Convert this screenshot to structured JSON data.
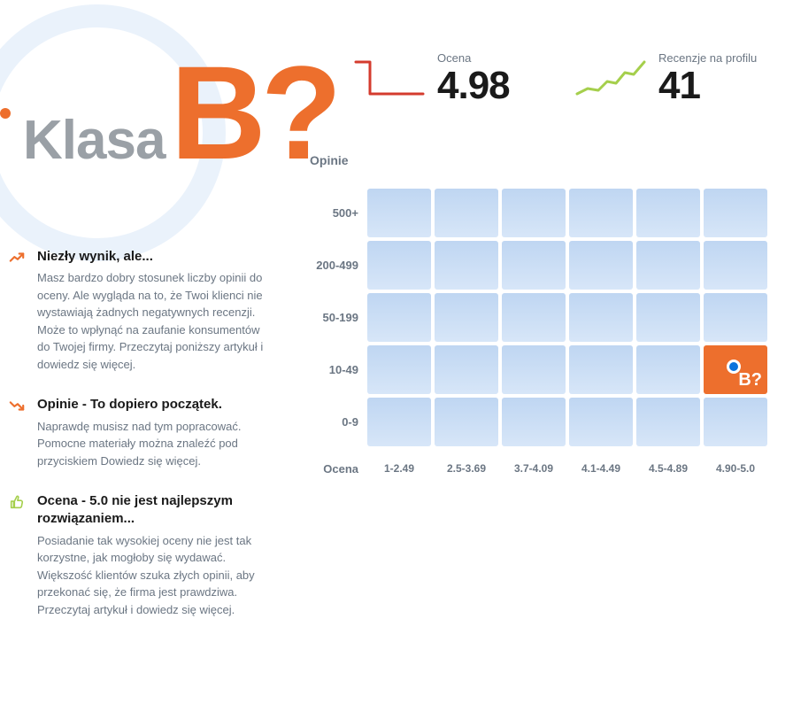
{
  "brand": {
    "klasa_label": "Klasa",
    "grade": "B?",
    "dot_color": "#ed6f2d",
    "label_color": "#9aa0a6",
    "grade_color": "#ed6f2d"
  },
  "metrics": {
    "rating": {
      "label": "Ocena",
      "value": "4.98",
      "line_color": "#d43b2e"
    },
    "reviews": {
      "label": "Recenzje na profilu",
      "value": "41",
      "line_color": "#a5cf4c"
    }
  },
  "heatmap": {
    "y_title": "Opinie",
    "x_title": "Ocena",
    "y_labels": [
      "500+",
      "200-499",
      "50-199",
      "10-49",
      "0-9"
    ],
    "x_labels": [
      "1-2.49",
      "2.5-3.69",
      "3.7-4.09",
      "4.1-4.49",
      "4.5-4.89",
      "4.90-5.0"
    ],
    "cell_color": "#c9ddf5",
    "active_color": "#ed6f2d",
    "active_row": 3,
    "active_col": 5,
    "active_badge": "B?"
  },
  "items": [
    {
      "icon": "trend-up-orange",
      "icon_color": "#ed6f2d",
      "title": "Niezły wynik, ale...",
      "desc": "Masz bardzo dobry stosunek liczby opinii do oceny. Ale wygląda na to, że Twoi klienci nie wystawiają żadnych negatywnych recenzji. Może to wpłynąć na zaufanie konsumentów do Twojej firmy. Przeczytaj poniższy artykuł i dowiedz się więcej."
    },
    {
      "icon": "trend-down-orange",
      "icon_color": "#ed6f2d",
      "title": "Opinie - To dopiero początek.",
      "desc": "Naprawdę musisz nad tym popracować. Pomocne materiały można znaleźć pod przyciskiem Dowiedz się więcej."
    },
    {
      "icon": "thumb-up-green",
      "icon_color": "#a5cf4c",
      "title": "Ocena - 5.0 nie jest najlepszym rozwiązaniem...",
      "desc": "Posiadanie tak wysokiej oceny nie jest tak korzystne, jak mogłoby się wydawać. Większość klientów szuka złych opinii, aby przekonać się, że firma jest prawdziwa. Przeczytaj artykuł i dowiedz się więcej."
    }
  ]
}
